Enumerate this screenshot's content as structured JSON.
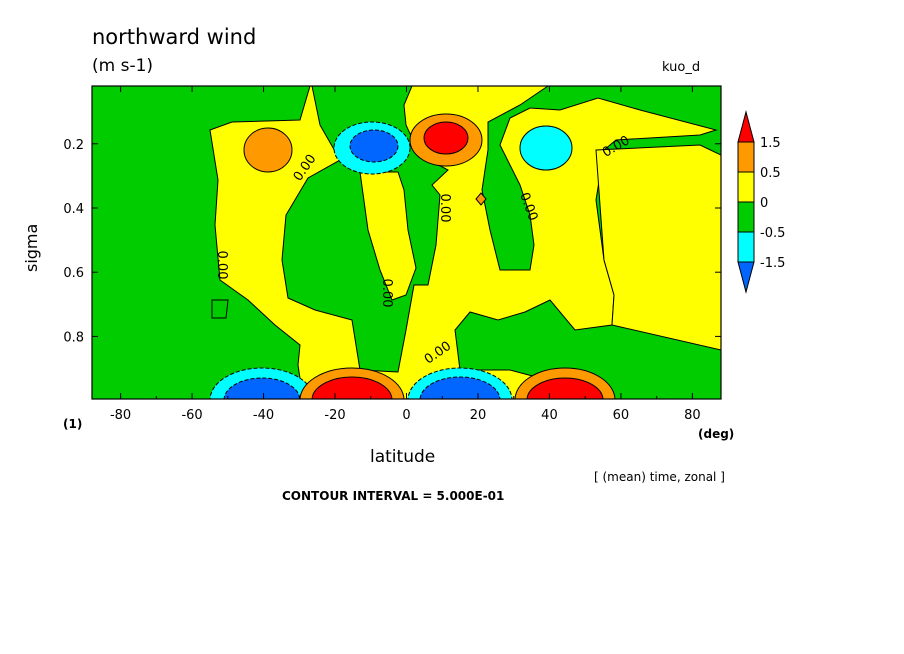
{
  "header": {
    "title": "northward wind",
    "units": "(m s-1)",
    "tag": "kuo_d",
    "identifier": "(1)",
    "x_unit": "(deg)",
    "mean_note": "[ (mean) time, zonal ]",
    "contour_interval": "CONTOUR INTERVAL = 5.000E-01"
  },
  "chart_data": {
    "type": "heatmap",
    "xlabel": "latitude",
    "ylabel": "sigma",
    "xlim": [
      -88,
      88
    ],
    "ylim": [
      0.995,
      0.02
    ],
    "x_ticks": [
      -80,
      -60,
      -40,
      -20,
      0,
      20,
      40,
      60,
      80
    ],
    "y_ticks": [
      0.2,
      0.4,
      0.6,
      0.8
    ],
    "contour_labels": [
      "0.00",
      "0.00",
      "0.00",
      "0.00",
      "0.00",
      "0.00",
      "0.00"
    ],
    "colorbar": {
      "levels": [
        -1.5,
        -0.5,
        0,
        0.5,
        1.5
      ],
      "level_labels": [
        "1.5",
        "0.5",
        "0",
        "-0.5",
        "-1.5"
      ],
      "colors": [
        "#ff0000",
        "#ff9900",
        "#ffff00",
        "#00cc00",
        "#00ffff",
        "#0066ff"
      ]
    },
    "grid": false,
    "features": [
      {
        "lat": -40,
        "sigma": 0.97,
        "value": -1.8,
        "color": "#0066ff"
      },
      {
        "lat": -12,
        "sigma": 0.97,
        "value": 2.0,
        "color": "#ff0000"
      },
      {
        "lat": 10,
        "sigma": 0.97,
        "value": -2.0,
        "color": "#0066ff"
      },
      {
        "lat": 40,
        "sigma": 0.97,
        "value": 1.8,
        "color": "#ff0000"
      },
      {
        "lat": -8,
        "sigma": 0.2,
        "value": -1.6,
        "color": "#0066ff"
      },
      {
        "lat": 12,
        "sigma": 0.2,
        "value": 1.6,
        "color": "#ff0000"
      },
      {
        "lat": -42,
        "sigma": 0.21,
        "value": 0.7,
        "color": "#ff9900"
      },
      {
        "lat": 42,
        "sigma": 0.22,
        "value": -0.7,
        "color": "#00ffff"
      }
    ]
  },
  "colors": {
    "strong_positive": "#ff0000",
    "positive": "#ff9900",
    "weak_positive": "#ffff00",
    "weak_negative": "#00cc00",
    "negative": "#00ffff",
    "strong_negative": "#0066ff"
  }
}
